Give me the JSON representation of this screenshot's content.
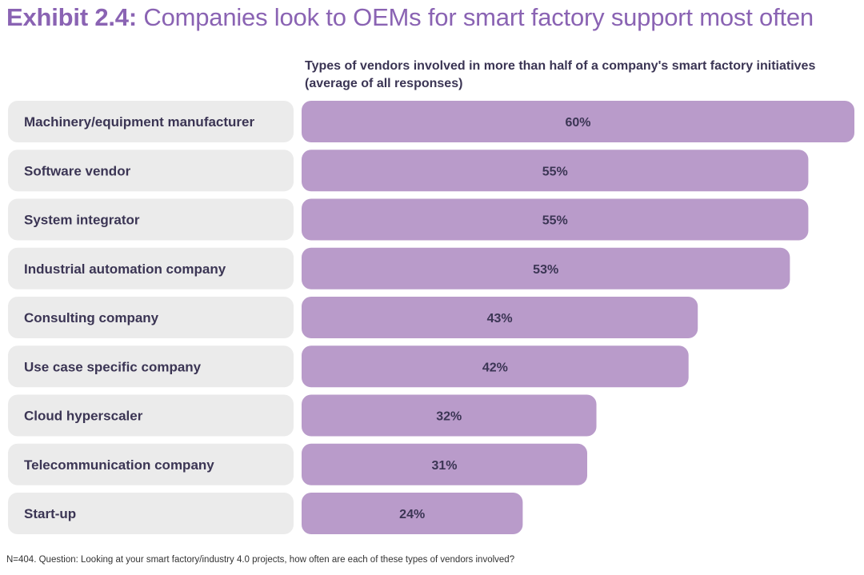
{
  "title": {
    "prefix": "Exhibit 2.4:",
    "text": "Companies look to OEMs for smart factory support most often"
  },
  "colors": {
    "title": "#8a63b3",
    "bar": "#b99bca",
    "label_bg": "#ebebeb",
    "text": "#3b3554"
  },
  "chart_data": {
    "type": "bar",
    "orientation": "horizontal",
    "title": "Types of vendors involved in more than half of a company's smart factory initiatives",
    "subtitle": "(average of all responses)",
    "categories": [
      "Machinery/equipment manufacturer",
      "Software vendor",
      "System integrator",
      "Industrial automation company",
      "Consulting company",
      "Use case specific company",
      "Cloud hyperscaler",
      "Telecommunication company",
      "Start-up"
    ],
    "values": [
      60,
      55,
      55,
      53,
      43,
      42,
      32,
      31,
      24
    ],
    "value_labels": [
      "60%",
      "55%",
      "55%",
      "53%",
      "43%",
      "42%",
      "32%",
      "31%",
      "24%"
    ],
    "unit": "%",
    "xlim": [
      0,
      60
    ],
    "grid": false,
    "legend": "none"
  },
  "footnote": "N=404. Question: Looking at your smart factory/industry 4.0 projects, how often are each of these types of vendors involved?"
}
